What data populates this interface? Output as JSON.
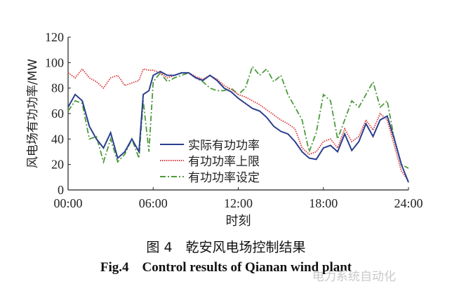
{
  "chart_data": {
    "type": "line",
    "title": "",
    "xlabel": "时刻",
    "ylabel": "风电场有功功率/MW",
    "xlim": [
      0,
      24
    ],
    "ylim": [
      0,
      120
    ],
    "xticks": [
      0,
      6,
      12,
      18,
      24
    ],
    "xtick_labels": [
      "00:00",
      "06:00",
      "12:00",
      "18:00",
      "24:00"
    ],
    "yticks": [
      0,
      20,
      40,
      60,
      80,
      100,
      120
    ],
    "ytick_labels": [
      "0",
      "20",
      "40",
      "60",
      "80",
      "100",
      "120"
    ],
    "grid": false,
    "legend_position": "center",
    "x": [
      0,
      0.5,
      1,
      1.5,
      2,
      2.5,
      3,
      3.5,
      4,
      4.5,
      5,
      5.3,
      5.7,
      6,
      6.5,
      7,
      7.5,
      8,
      8.5,
      9,
      9.5,
      10,
      10.5,
      11,
      11.5,
      12,
      12.5,
      13,
      13.5,
      14,
      14.5,
      15,
      15.5,
      16,
      16.5,
      17,
      17.5,
      18,
      18.5,
      19,
      19.5,
      20,
      20.5,
      21,
      21.5,
      22,
      22.5,
      23,
      23.5,
      24
    ],
    "series": [
      {
        "name": "实际有功功率",
        "color": "#2a3f8f",
        "style": "solid",
        "values": [
          65,
          75,
          70,
          50,
          40,
          33,
          45,
          25,
          30,
          40,
          30,
          75,
          78,
          90,
          93,
          90,
          90,
          92,
          92,
          88,
          86,
          90,
          86,
          80,
          77,
          72,
          68,
          64,
          62,
          57,
          50,
          46,
          44,
          38,
          30,
          25,
          24,
          33,
          35,
          30,
          44,
          31,
          38,
          52,
          42,
          55,
          58,
          40,
          20,
          6
        ]
      },
      {
        "name": "有功功率上限",
        "color": "#d9383a",
        "style": "dotted",
        "values": [
          92,
          88,
          95,
          88,
          85,
          80,
          88,
          90,
          82,
          84,
          86,
          95,
          94,
          94,
          92,
          88,
          90,
          92,
          92,
          89,
          87,
          90,
          87,
          82,
          79,
          75,
          73,
          70,
          67,
          63,
          59,
          55,
          52,
          48,
          33,
          28,
          30,
          38,
          40,
          33,
          48,
          38,
          42,
          55,
          47,
          60,
          55,
          35,
          15,
          7
        ]
      },
      {
        "name": "有功功率设定",
        "color": "#4e9a3c",
        "style": "dashdot",
        "values": [
          62,
          70,
          68,
          40,
          42,
          22,
          40,
          22,
          28,
          40,
          25,
          70,
          30,
          85,
          92,
          85,
          88,
          90,
          92,
          88,
          85,
          80,
          78,
          78,
          80,
          75,
          80,
          97,
          90,
          95,
          85,
          90,
          75,
          65,
          55,
          30,
          45,
          75,
          70,
          40,
          55,
          70,
          65,
          75,
          85,
          65,
          70,
          40,
          20,
          17
        ]
      }
    ]
  },
  "caption": {
    "cn": "图 4　乾安风电场控制结果",
    "en": "Fig.4　Control results of Qianan wind plant"
  },
  "watermark": "电力系统自动化"
}
